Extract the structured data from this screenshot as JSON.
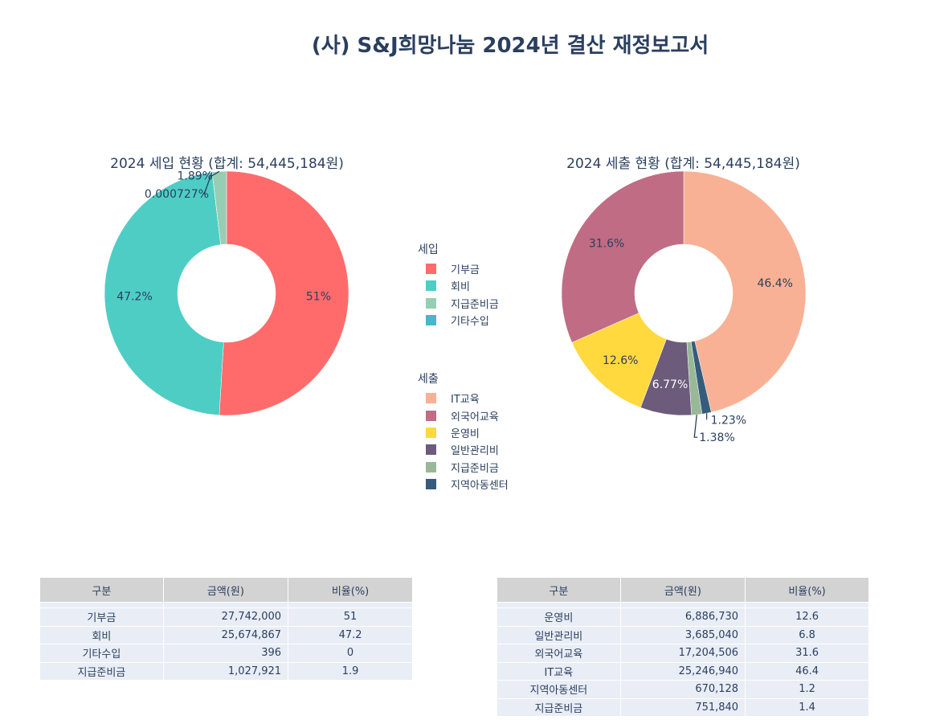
{
  "title": "(사) S&J희망나눔 2024년 결산 재정보고서",
  "chart_data": [
    {
      "type": "pie",
      "hole": true,
      "title": "2024 세입 현황 (합계: 54,445,184원)",
      "legend_title": "세입",
      "labels": [
        "기부금",
        "회비",
        "기타수입",
        "지급준비금"
      ],
      "legend_order": [
        "기부금",
        "회비",
        "지급준비금",
        "기타수입"
      ],
      "values": [
        27742000,
        25674867,
        396,
        1027921
      ],
      "percent_labels": [
        "51%",
        "47.2%",
        "0.000727%",
        "1.89%"
      ],
      "colors": [
        "#ff6b6b",
        "#4ecdc4",
        "#45b7d1",
        "#96ceb4"
      ]
    },
    {
      "type": "pie",
      "hole": true,
      "title": "2024 세출 현황 (합계: 54,445,184원)",
      "legend_title": "세출",
      "labels": [
        "IT교육",
        "지역아동센터",
        "지급준비금",
        "일반관리비",
        "운영비",
        "외국어교육"
      ],
      "legend_order": [
        "IT교육",
        "외국어교육",
        "운영비",
        "일반관리비",
        "지급준비금",
        "지역아동센터"
      ],
      "values": [
        25246940,
        670128,
        751840,
        3685040,
        6886730,
        17204506
      ],
      "percent_labels": [
        "46.4%",
        "1.23%",
        "1.38%",
        "6.77%",
        "12.6%",
        "31.6%"
      ],
      "colors": [
        "#f8b195",
        "#355c7d",
        "#99b898",
        "#6c5b7b",
        "#ffd93d",
        "#c06c84"
      ]
    },
    {
      "type": "table",
      "headers": [
        "구분",
        "금액(원)",
        "비율(%)"
      ],
      "rows": [
        [
          "기부금",
          "27,742,000",
          "51"
        ],
        [
          "회비",
          "25,674,867",
          "47.2"
        ],
        [
          "기타수입",
          "396",
          "0"
        ],
        [
          "지급준비금",
          "1,027,921",
          "1.9"
        ]
      ]
    },
    {
      "type": "table",
      "headers": [
        "구분",
        "금액(원)",
        "비율(%)"
      ],
      "rows": [
        [
          "운영비",
          "6,886,730",
          "12.6"
        ],
        [
          "일반관리비",
          "3,685,040",
          "6.8"
        ],
        [
          "외국어교육",
          "17,204,506",
          "31.6"
        ],
        [
          "IT교육",
          "25,246,940",
          "46.4"
        ],
        [
          "지역아동센터",
          "670,128",
          "1.2"
        ],
        [
          "지급준비금",
          "751,840",
          "1.4"
        ]
      ]
    }
  ]
}
